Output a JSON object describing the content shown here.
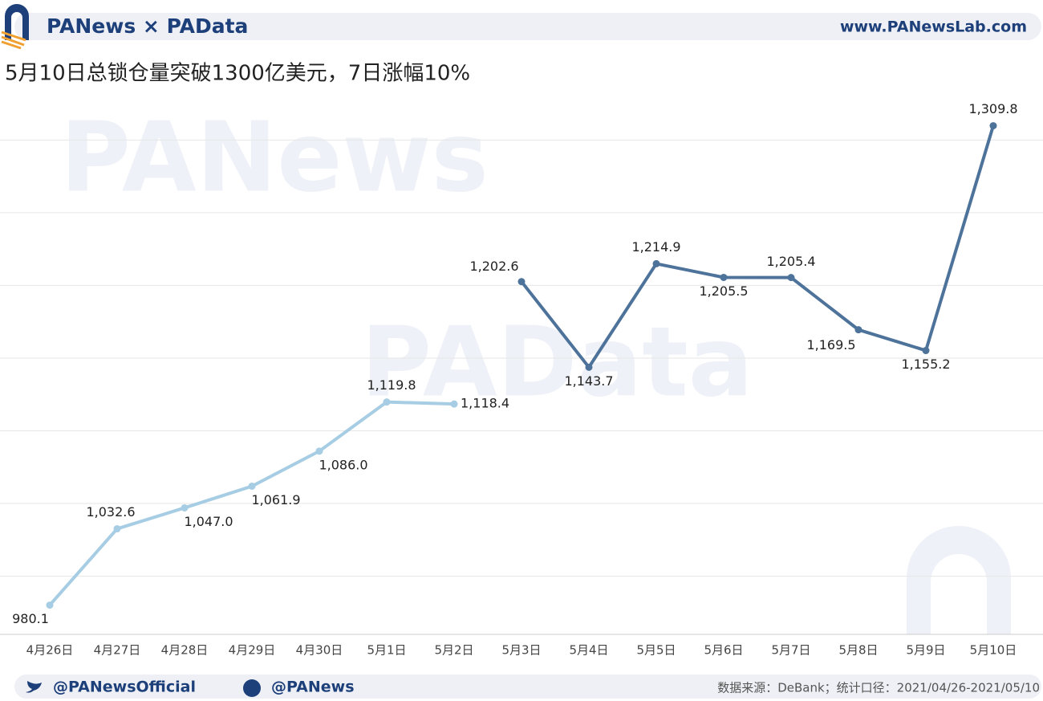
{
  "header": {
    "brand": "PANews × PAData",
    "site": "www.PANewsLab.com"
  },
  "watermarks": [
    "PANews",
    "PAData"
  ],
  "chart_data": {
    "type": "line",
    "title": "5月10日总锁仓量突破1300亿美元，7日涨幅10%",
    "categories": [
      "4月26日",
      "4月27日",
      "4月28日",
      "4月29日",
      "4月30日",
      "5月1日",
      "5月2日",
      "5月3日",
      "5月4日",
      "5月5日",
      "5月6日",
      "5月7日",
      "5月8日",
      "5月9日",
      "5月10日"
    ],
    "series": [
      {
        "color": "#a6cde3",
        "values": [
          980.1,
          1032.6,
          1047.0,
          1061.9,
          1086.0,
          1119.8,
          1118.4,
          null,
          null,
          null,
          null,
          null,
          null,
          null,
          null
        ],
        "value_labels": [
          "980.1",
          "1,032.6",
          "1,047.0",
          "1,061.9",
          "1,086.0",
          "1,119.8",
          "1,118.4",
          null,
          null,
          null,
          null,
          null,
          null,
          null,
          null
        ]
      },
      {
        "color": "#4e739b",
        "values": [
          null,
          null,
          null,
          null,
          null,
          null,
          null,
          1202.6,
          1143.7,
          1214.9,
          1205.5,
          1205.4,
          1169.5,
          1155.2,
          1309.8
        ],
        "value_labels": [
          null,
          null,
          null,
          null,
          null,
          null,
          null,
          "1,202.6",
          "1,143.7",
          "1,214.9",
          "1,205.5",
          "1,205.4",
          "1,169.5",
          "1,155.2",
          "1,309.8"
        ]
      }
    ],
    "ylim": [
      960,
      1330
    ],
    "yticks": [
      1000,
      1050,
      1100,
      1150,
      1200,
      1250,
      1300
    ],
    "grid": true
  },
  "footer": {
    "twitter": "@PANewsOfficial",
    "weibo": "@PANews",
    "source": "数据来源：DeBank；统计口径：2021/04/26-2021/05/10"
  }
}
